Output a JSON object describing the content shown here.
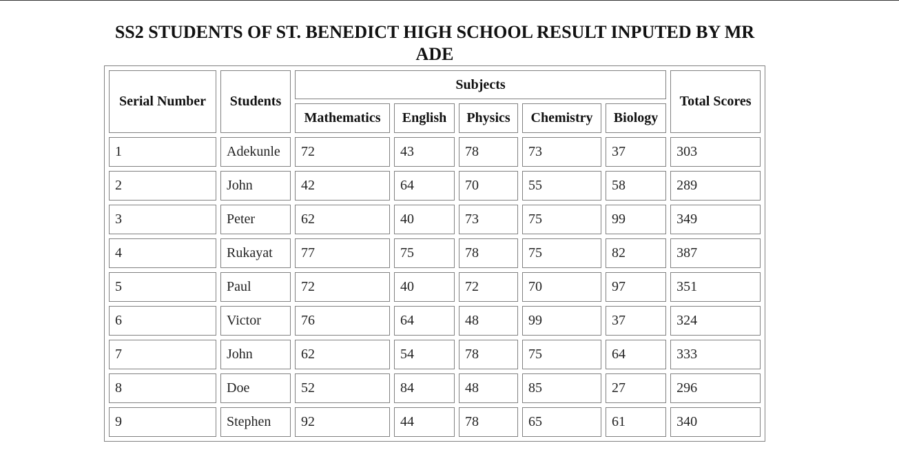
{
  "caption": "SS2 STUDENTS OF ST. BENEDICT HIGH SCHOOL RESULT INPUTED BY MR ADE",
  "headers": {
    "serial": "Serial Number",
    "students": "Students",
    "subjects": "Subjects",
    "total": "Total Scores",
    "subject_names": [
      "Mathematics",
      "English",
      "Physics",
      "Chemistry",
      "Biology"
    ]
  },
  "rows": [
    {
      "serial": "1",
      "name": "Adekunle",
      "math": "72",
      "english": "43",
      "physics": "78",
      "chemistry": "73",
      "biology": "37",
      "total": "303"
    },
    {
      "serial": "2",
      "name": "John",
      "math": "42",
      "english": "64",
      "physics": "70",
      "chemistry": "55",
      "biology": "58",
      "total": "289"
    },
    {
      "serial": "3",
      "name": "Peter",
      "math": "62",
      "english": "40",
      "physics": "73",
      "chemistry": "75",
      "biology": "99",
      "total": "349"
    },
    {
      "serial": "4",
      "name": "Rukayat",
      "math": "77",
      "english": "75",
      "physics": "78",
      "chemistry": "75",
      "biology": "82",
      "total": "387"
    },
    {
      "serial": "5",
      "name": "Paul",
      "math": "72",
      "english": "40",
      "physics": "72",
      "chemistry": "70",
      "biology": "97",
      "total": "351"
    },
    {
      "serial": "6",
      "name": "Victor",
      "math": "76",
      "english": "64",
      "physics": "48",
      "chemistry": "99",
      "biology": "37",
      "total": "324"
    },
    {
      "serial": "7",
      "name": "John",
      "math": "62",
      "english": "54",
      "physics": "78",
      "chemistry": "75",
      "biology": "64",
      "total": "333"
    },
    {
      "serial": "8",
      "name": "Doe",
      "math": "52",
      "english": "84",
      "physics": "48",
      "chemistry": "85",
      "biology": "27",
      "total": "296"
    },
    {
      "serial": "9",
      "name": "Stephen",
      "math": "92",
      "english": "44",
      "physics": "78",
      "chemistry": "65",
      "biology": "61",
      "total": "340"
    }
  ]
}
